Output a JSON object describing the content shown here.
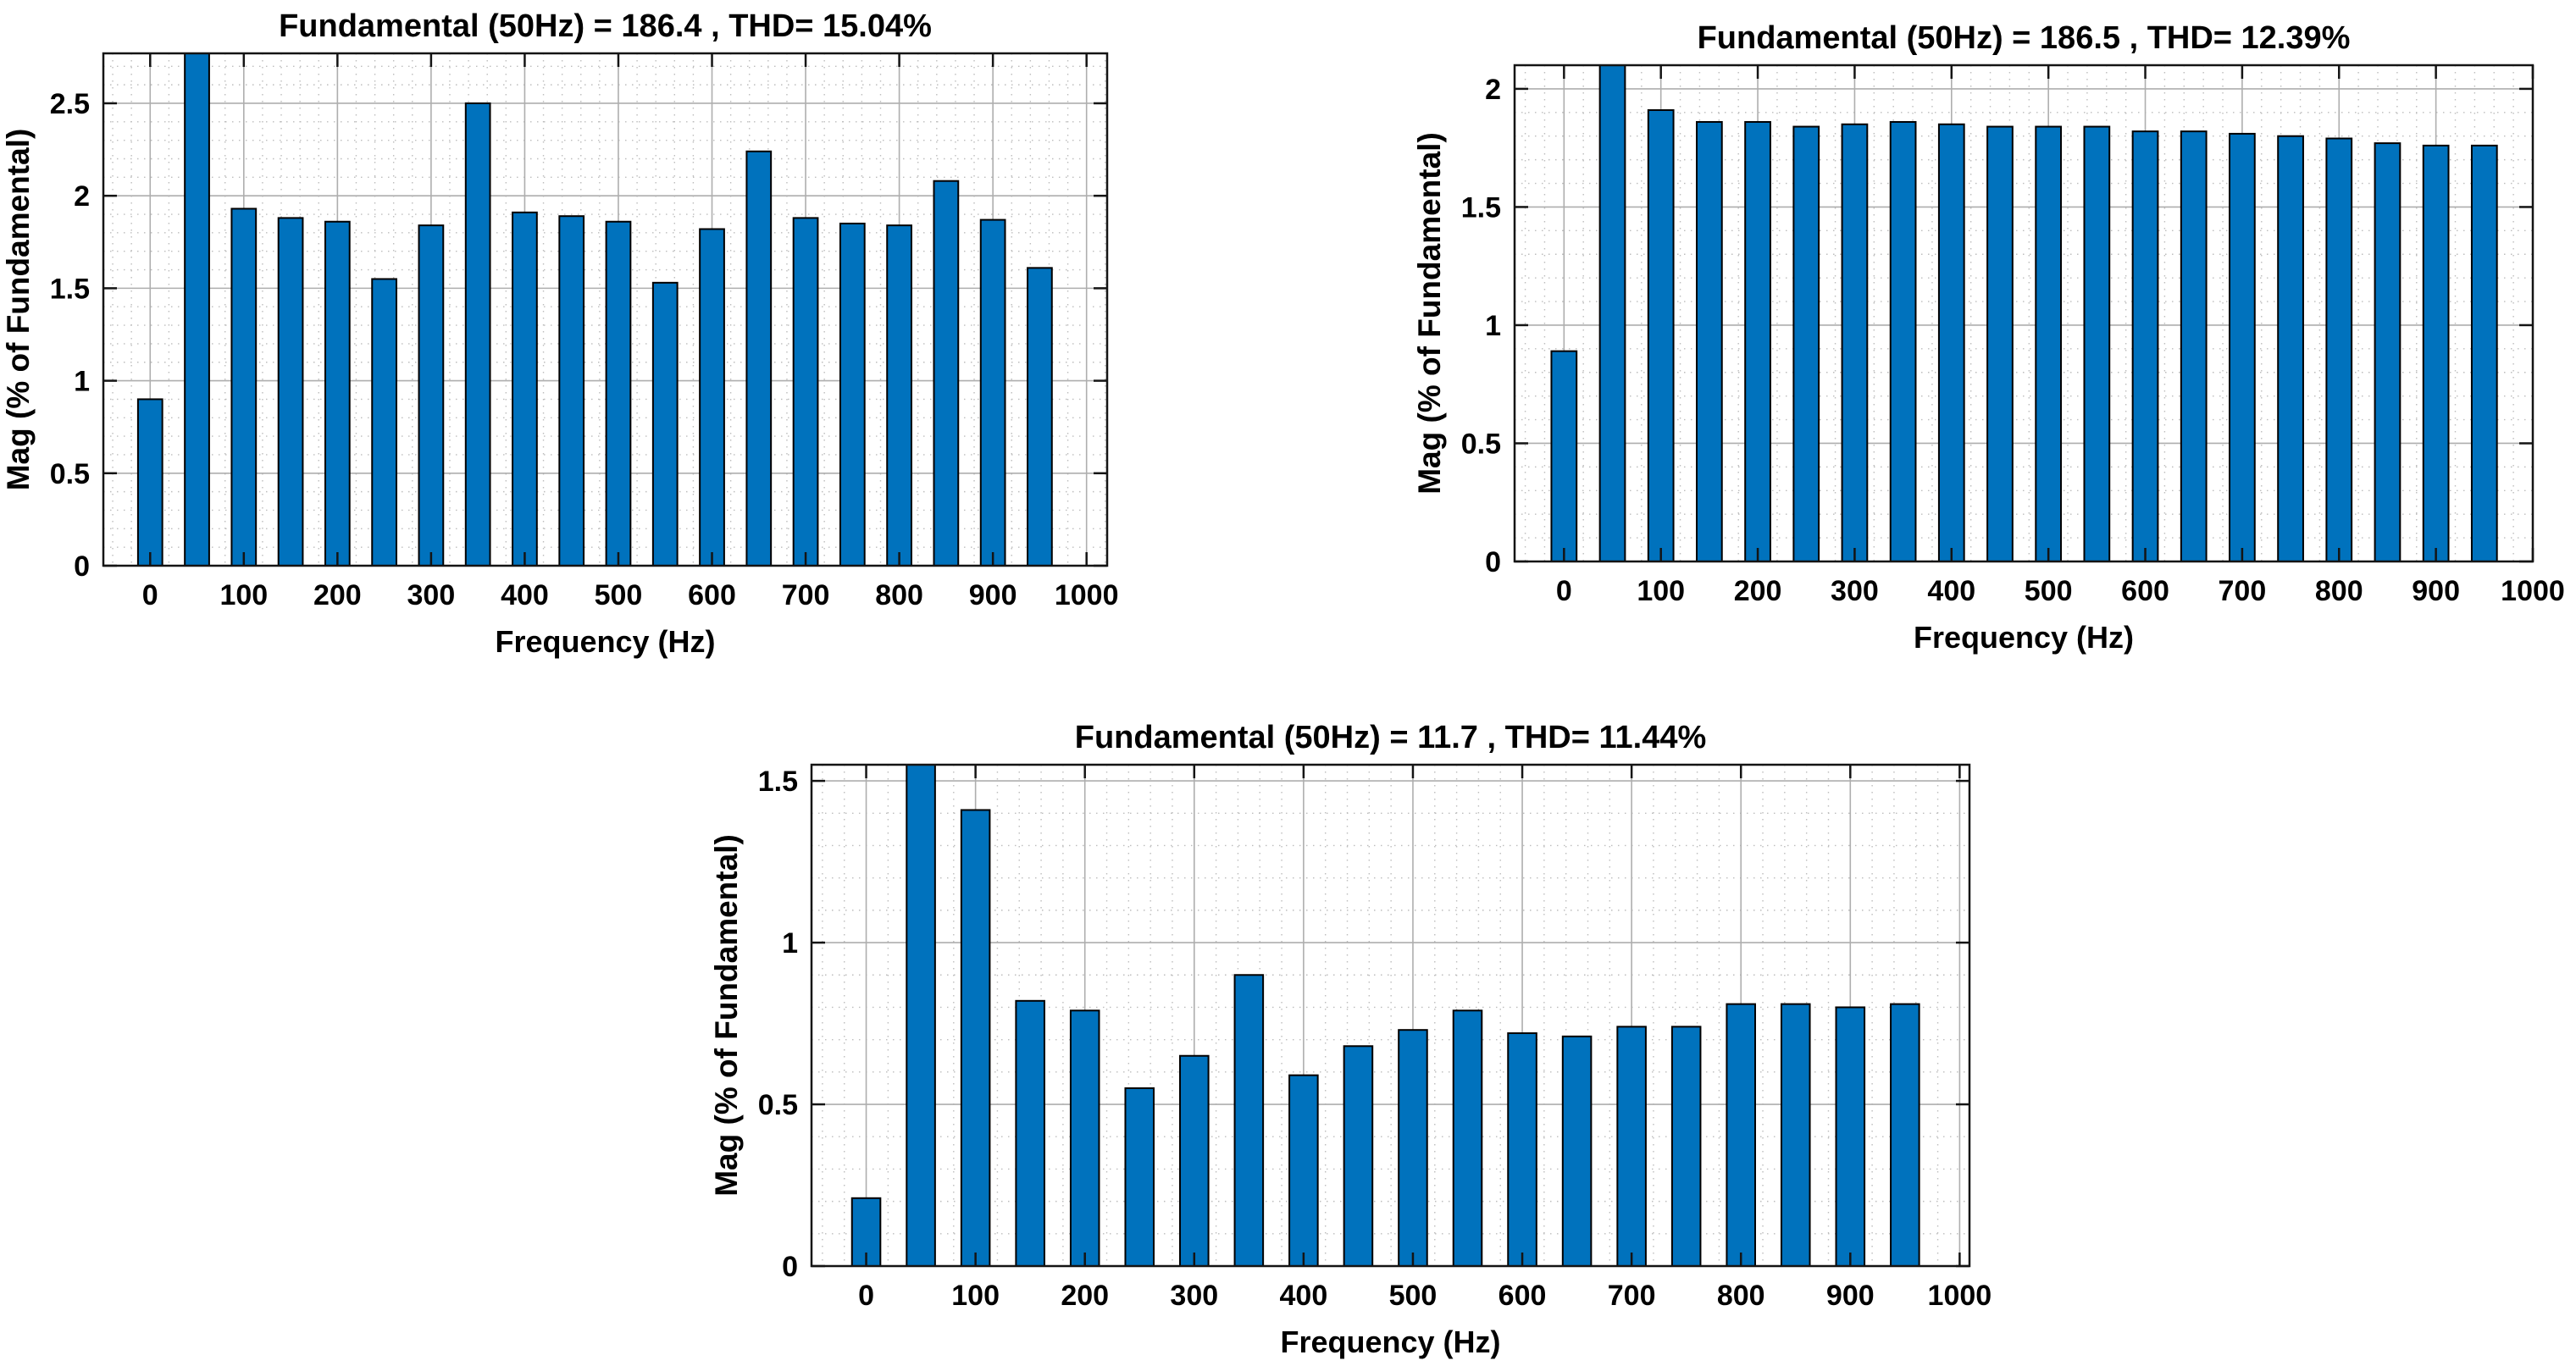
{
  "figure": {
    "background": "#ffffff",
    "description": "Three MATLAB powergui FFT analysis bar charts showing harmonic magnitude spectra with THD"
  },
  "chart_data": [
    {
      "type": "bar",
      "position": "top-left",
      "title": "Fundamental (50Hz) = 186.4 , THD= 15.04%",
      "xlabel": "Frequency (Hz)",
      "ylabel": "Mag (% of Fundamental)",
      "fundamental_hz": 50,
      "fundamental_mag": 186.4,
      "thd_percent": 15.04,
      "x_hz": [
        0,
        50,
        100,
        150,
        200,
        250,
        300,
        350,
        400,
        450,
        500,
        550,
        600,
        650,
        700,
        750,
        800,
        850,
        900,
        950
      ],
      "values": [
        0.9,
        2.9,
        1.93,
        1.88,
        1.86,
        1.55,
        1.84,
        2.5,
        1.91,
        1.89,
        1.86,
        1.53,
        1.82,
        2.24,
        1.88,
        1.85,
        1.84,
        2.08,
        1.87,
        1.61
      ],
      "clipped_indices": [
        1
      ],
      "clipped_note": "50 Hz fundamental bar extends beyond the top of the axes (clipped)",
      "xlim": [
        -50,
        1022
      ],
      "ylim": [
        0,
        2.77
      ],
      "xticks": [
        0,
        100,
        200,
        300,
        400,
        500,
        600,
        700,
        800,
        900,
        1000
      ],
      "xtick_labels": [
        "0",
        "100",
        "200",
        "300",
        "400",
        "500",
        "600",
        "700",
        "800",
        "900",
        "1000"
      ],
      "yticks": [
        0,
        0.5,
        1,
        1.5,
        2,
        2.5
      ],
      "ytick_labels": [
        "0",
        "0.5",
        "1",
        "1.5",
        "2",
        "2.5"
      ],
      "grid": true,
      "minor_grid": true,
      "bar_color": "#0072BD",
      "bar_edge_color": "#000000"
    },
    {
      "type": "bar",
      "position": "top-right",
      "title": "Fundamental (50Hz) = 186.5 , THD= 12.39%",
      "xlabel": "Frequency (Hz)",
      "ylabel": "Mag (% of Fundamental)",
      "fundamental_hz": 50,
      "fundamental_mag": 186.5,
      "thd_percent": 12.39,
      "x_hz": [
        0,
        50,
        100,
        150,
        200,
        250,
        300,
        350,
        400,
        450,
        500,
        550,
        600,
        650,
        700,
        750,
        800,
        850,
        900,
        950
      ],
      "values": [
        0.89,
        2.3,
        1.91,
        1.86,
        1.86,
        1.84,
        1.85,
        1.86,
        1.85,
        1.84,
        1.84,
        1.84,
        1.82,
        1.82,
        1.81,
        1.8,
        1.79,
        1.77,
        1.76,
        1.76
      ],
      "clipped_indices": [
        1
      ],
      "clipped_note": "50 Hz fundamental bar extends beyond the top of the axes (clipped)",
      "xlim": [
        -51,
        1000
      ],
      "ylim": [
        0,
        2.1
      ],
      "xticks": [
        0,
        100,
        200,
        300,
        400,
        500,
        600,
        700,
        800,
        900,
        1000
      ],
      "xtick_labels": [
        "0",
        "100",
        "200",
        "300",
        "400",
        "500",
        "600",
        "700",
        "800",
        "900",
        "1000"
      ],
      "yticks": [
        0,
        0.5,
        1,
        1.5,
        2
      ],
      "ytick_labels": [
        "0",
        "0.5",
        "1",
        "1.5",
        "2"
      ],
      "grid": true,
      "minor_grid": true,
      "bar_color": "#0072BD",
      "bar_edge_color": "#000000"
    },
    {
      "type": "bar",
      "position": "bottom-center",
      "title": "Fundamental (50Hz) = 11.7 , THD= 11.44%",
      "xlabel": "Frequency (Hz)",
      "ylabel": "Mag (% of Fundamental)",
      "fundamental_hz": 50,
      "fundamental_mag": 11.7,
      "thd_percent": 11.44,
      "x_hz": [
        0,
        50,
        100,
        150,
        200,
        250,
        300,
        350,
        400,
        450,
        500,
        550,
        600,
        650,
        700,
        750,
        800,
        850,
        900,
        950
      ],
      "values": [
        0.21,
        1.7,
        1.41,
        0.82,
        0.79,
        0.55,
        0.65,
        0.9,
        0.59,
        0.68,
        0.73,
        0.79,
        0.72,
        0.71,
        0.74,
        0.74,
        0.81,
        0.81,
        0.8,
        0.81
      ],
      "clipped_indices": [
        1
      ],
      "clipped_note": "50 Hz fundamental bar extends beyond the top of the axes (clipped)",
      "xlim": [
        -50,
        1009
      ],
      "ylim": [
        0,
        1.55
      ],
      "xticks": [
        0,
        100,
        200,
        300,
        400,
        500,
        600,
        700,
        800,
        900,
        1000
      ],
      "xtick_labels": [
        "0",
        "100",
        "200",
        "300",
        "400",
        "500",
        "600",
        "700",
        "800",
        "900",
        "1000"
      ],
      "yticks": [
        0,
        0.5,
        1,
        1.5
      ],
      "ytick_labels": [
        "0",
        "0.5",
        "1",
        "1.5"
      ],
      "grid": true,
      "minor_grid": true,
      "bar_color": "#0072BD",
      "bar_edge_color": "#000000"
    }
  ]
}
